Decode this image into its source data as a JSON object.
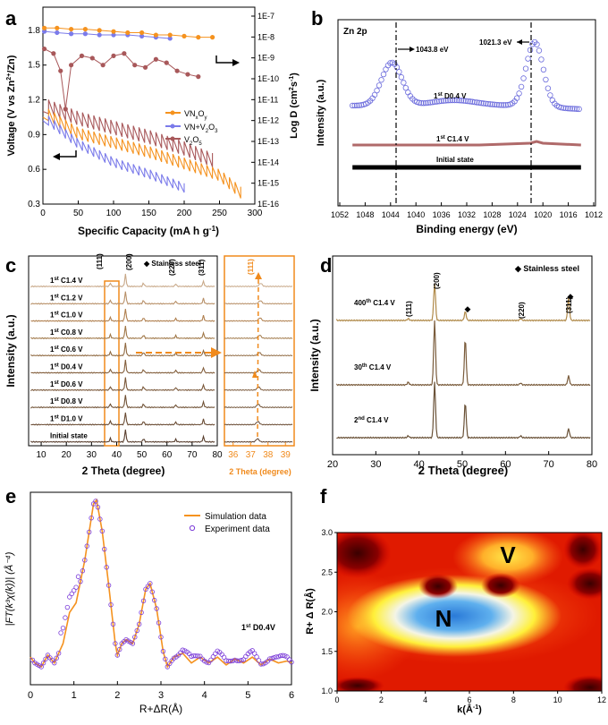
{
  "panels": {
    "a": {
      "label": "a",
      "xlabel": "Specific Capacity (mA h g",
      "xlabel_sup": "-1",
      "xlabel_end": ")",
      "ylabel_left": "Voltage (V vs Zn",
      "ylabel_left_sup": "2+",
      "ylabel_left_end": "/Zn)",
      "ylabel_right": "Log D (cm",
      "ylabel_right_sup": "2",
      "ylabel_right_mid": "s",
      "ylabel_right_sup2": "-1",
      "ylabel_right_end": ")",
      "xticks": [
        "0",
        "50",
        "100",
        "150",
        "200",
        "250",
        "300"
      ],
      "yticks_left": [
        "0.3",
        "0.6",
        "0.9",
        "1.2",
        "1.5",
        "1.8"
      ],
      "yticks_right": [
        "1E-7",
        "1E-8",
        "1E-9",
        "1E-10",
        "1E-11",
        "1E-12",
        "1E-13",
        "1E-14",
        "1E-15",
        "1E-16"
      ],
      "legend": [
        {
          "name": "VN",
          "sub1": "x",
          "mid": "O",
          "sub2": "y",
          "color": "#f5921e"
        },
        {
          "name": "VN+V",
          "sub1": "2",
          "mid": "O",
          "sub2": "3",
          "color": "#7b7bea"
        },
        {
          "name": "V",
          "sub1": "2",
          "mid": "O",
          "sub2": "5",
          "color": "#a8585a"
        }
      ]
    },
    "b": {
      "label": "b",
      "title": "Zn 2p",
      "xlabel": "Binding energy (eV)",
      "ylabel": "Intensity (a.u.)",
      "xticks": [
        "1052",
        "1048",
        "1044",
        "1040",
        "1036",
        "1032",
        "1028",
        "1024",
        "1020",
        "1016",
        "1012"
      ],
      "annot1": "1043.8 eV",
      "annot2": "1021.3 eV",
      "curve1_pre": "1",
      "curve1_sup": "st",
      "curve1_post": " D0.4 V",
      "curve2_pre": "1",
      "curve2_sup": "st",
      "curve2_post": " C1.4 V",
      "curve3": "Initial state",
      "colors": {
        "d04": "#6b6bdc",
        "c14": "#b06a6a",
        "init": "#000000"
      }
    },
    "c": {
      "label": "c",
      "xlabel": "2 Theta (degree)",
      "ylabel": "Intensity (a.u.)",
      "xticks": [
        "10",
        "20",
        "30",
        "40",
        "50",
        "60",
        "70",
        "80"
      ],
      "zoom_xticks": [
        "36",
        "37",
        "38",
        "39"
      ],
      "zoom_xlabel": "2 Theta (degree)",
      "legend": "Stainless steel",
      "peaks": [
        "(111)",
        "(200)",
        "(220)",
        "(311)"
      ],
      "zoom_peak": "(111)",
      "traces": [
        {
          "pre": "1",
          "sup": "st",
          "post": " C1.4 V"
        },
        {
          "pre": "1",
          "sup": "st",
          "post": " C1.2 V"
        },
        {
          "pre": "1",
          "sup": "st",
          "post": " C1.0 V"
        },
        {
          "pre": "1",
          "sup": "st",
          "post": " C0.8 V"
        },
        {
          "pre": "1",
          "sup": "st",
          "post": " C0.6 V"
        },
        {
          "pre": "1",
          "sup": "st",
          "post": " D0.4 V"
        },
        {
          "pre": "1",
          "sup": "st",
          "post": " D0.6 V"
        },
        {
          "pre": "1",
          "sup": "st",
          "post": " D0.8 V"
        },
        {
          "pre": "1",
          "sup": "st",
          "post": " D1.0 V"
        },
        {
          "pre": "",
          "sup": "",
          "post": "Initial state"
        }
      ],
      "accent": "#f08a1c"
    },
    "d": {
      "label": "d",
      "xlabel": "2 Theta (degree)",
      "ylabel": "Intensity (a.u.)",
      "xticks": [
        "20",
        "30",
        "40",
        "50",
        "60",
        "70",
        "80"
      ],
      "legend": "Stainless steel",
      "peaks": [
        "(111)",
        "(200)",
        "(220)",
        "(311)"
      ],
      "traces": [
        {
          "pre": "400",
          "sup": "th",
          "post": " C1.4 V",
          "color": "#b08a4a"
        },
        {
          "pre": "30",
          "sup": "th",
          "post": " C1.4 V",
          "color": "#7a5c3c"
        },
        {
          "pre": "2",
          "sup": "nd",
          "post": " C1.4 V",
          "color": "#6a5238"
        }
      ]
    },
    "e": {
      "label": "e",
      "xlabel": "R+ΔR(Å)",
      "ylabel": "|FT(k³χ(k))| (Å⁻⁴)",
      "xticks": [
        "0",
        "1",
        "2",
        "3",
        "4",
        "5",
        "6"
      ],
      "legend": [
        {
          "name": "Simulation data",
          "color": "#f5921e"
        },
        {
          "name": "Experiment data",
          "color": "#7a3ad8"
        }
      ],
      "annot_pre": "1",
      "annot_sup": "st",
      "annot_post": " D0.4V"
    },
    "f": {
      "label": "f",
      "xlabel": "k(Å",
      "xlabel_sup": "-1",
      "xlabel_end": ")",
      "ylabel": "R+ Δ R(Å)",
      "xticks": [
        "0",
        "2",
        "4",
        "6",
        "8",
        "10",
        "12"
      ],
      "yticks": [
        "1.0",
        "1.5",
        "2.0",
        "2.5",
        "3.0"
      ],
      "letter_v": "V",
      "letter_n": "N"
    }
  },
  "chart_data": [
    {
      "type": "line",
      "panel": "a",
      "xlabel": "Specific Capacity (mA h g-1)",
      "ylabel": "Voltage (V vs Zn2+/Zn)",
      "y2label": "Log D (cm2s-1)",
      "xlim": [
        0,
        300
      ],
      "ylim": [
        0.3,
        2.0
      ],
      "series": [
        {
          "name": "VNxOy",
          "x": [
            0,
            50,
            100,
            150,
            200,
            250,
            280
          ],
          "values": [
            1.05,
            0.88,
            0.78,
            0.7,
            0.6,
            0.5,
            0.35
          ]
        },
        {
          "name": "VN+V2O3",
          "x": [
            0,
            50,
            100,
            150,
            200
          ],
          "values": [
            1.02,
            0.78,
            0.62,
            0.52,
            0.4
          ]
        },
        {
          "name": "V2O5",
          "x": [
            0,
            50,
            100,
            150,
            200,
            240
          ],
          "values": [
            1.1,
            0.98,
            0.9,
            0.82,
            0.72,
            0.62
          ]
        }
      ]
    },
    {
      "type": "line",
      "panel": "b",
      "xlabel": "Binding energy (eV)",
      "ylabel": "Intensity (a.u.)",
      "xlim": [
        1052,
        1012
      ],
      "peaks_eV": [
        1043.8,
        1021.3
      ]
    },
    {
      "type": "line",
      "panel": "c",
      "xlabel": "2 Theta (degree)",
      "ylabel": "Intensity (a.u.)",
      "xlim": [
        5,
        80
      ],
      "peaks_deg": [
        37.5,
        43.5,
        63.5,
        75.5
      ]
    },
    {
      "type": "line",
      "panel": "d",
      "xlabel": "2 Theta (degree)",
      "ylabel": "Intensity (a.u.)",
      "xlim": [
        20,
        80
      ],
      "peaks_deg": [
        37.5,
        43.5,
        50.7,
        63.5,
        74.5
      ]
    },
    {
      "type": "line",
      "panel": "e",
      "xlabel": "R+ΔR(Å)",
      "xlim": [
        0,
        6
      ],
      "series": [
        {
          "name": "Simulation data",
          "x": [
            0.2,
            0.5,
            0.9,
            1.2,
            1.5,
            1.8,
            2.1,
            2.4,
            2.7,
            3.0,
            3.5,
            4,
            5,
            6
          ],
          "values": [
            0.03,
            0.02,
            0.25,
            0.5,
            0.86,
            0.45,
            0.1,
            0.15,
            0.42,
            0.22,
            0.05,
            0.04,
            0.03,
            0.02
          ]
        },
        {
          "name": "Experiment data",
          "x": [
            0.2,
            0.5,
            0.9,
            1.2,
            1.5,
            1.8,
            2.1,
            2.4,
            2.7,
            3.0,
            3.5,
            4,
            5,
            6
          ],
          "values": [
            0.02,
            0.05,
            0.32,
            0.55,
            0.86,
            0.45,
            0.12,
            0.15,
            0.42,
            0.2,
            0.06,
            0.05,
            0.04,
            0.02
          ]
        }
      ]
    },
    {
      "type": "heatmap",
      "panel": "f",
      "xlabel": "k(Å-1)",
      "ylabel": "R+ΔR(Å)",
      "xlim": [
        0,
        12
      ],
      "ylim": [
        1.0,
        3.0
      ]
    }
  ]
}
